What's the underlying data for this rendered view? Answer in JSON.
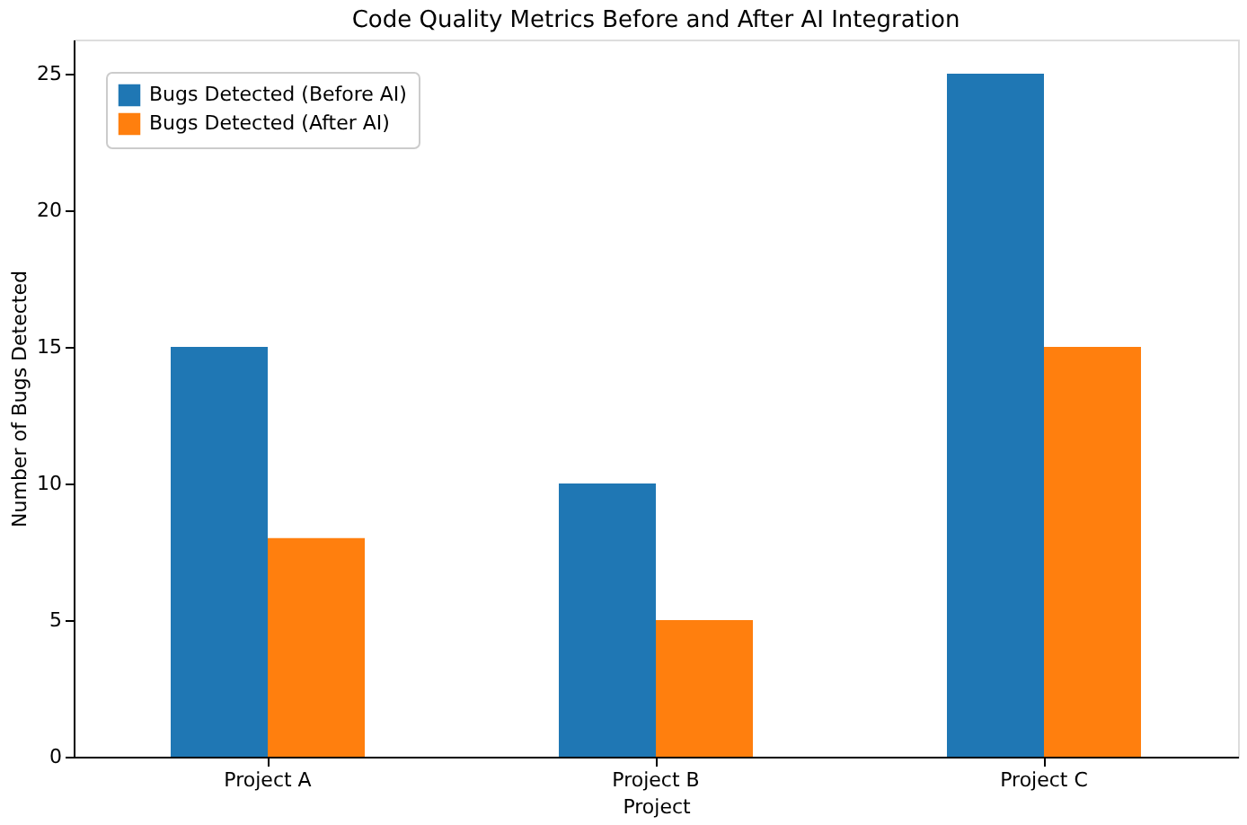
{
  "chart_data": {
    "type": "bar",
    "title": "Code Quality Metrics Before and After AI Integration",
    "xlabel": "Project",
    "ylabel": "Number of Bugs Detected",
    "categories": [
      "Project A",
      "Project B",
      "Project C"
    ],
    "series": [
      {
        "name": "Bugs Detected (Before AI)",
        "color": "#1f77b4",
        "values": [
          15,
          10,
          25
        ]
      },
      {
        "name": "Bugs Detected (After AI)",
        "color": "#ff7f0e",
        "values": [
          8,
          5,
          15
        ]
      }
    ],
    "ylim": [
      0,
      26.25
    ],
    "yticks": [
      0,
      5,
      10,
      15,
      20,
      25
    ],
    "grid": false,
    "legend": "top left"
  }
}
